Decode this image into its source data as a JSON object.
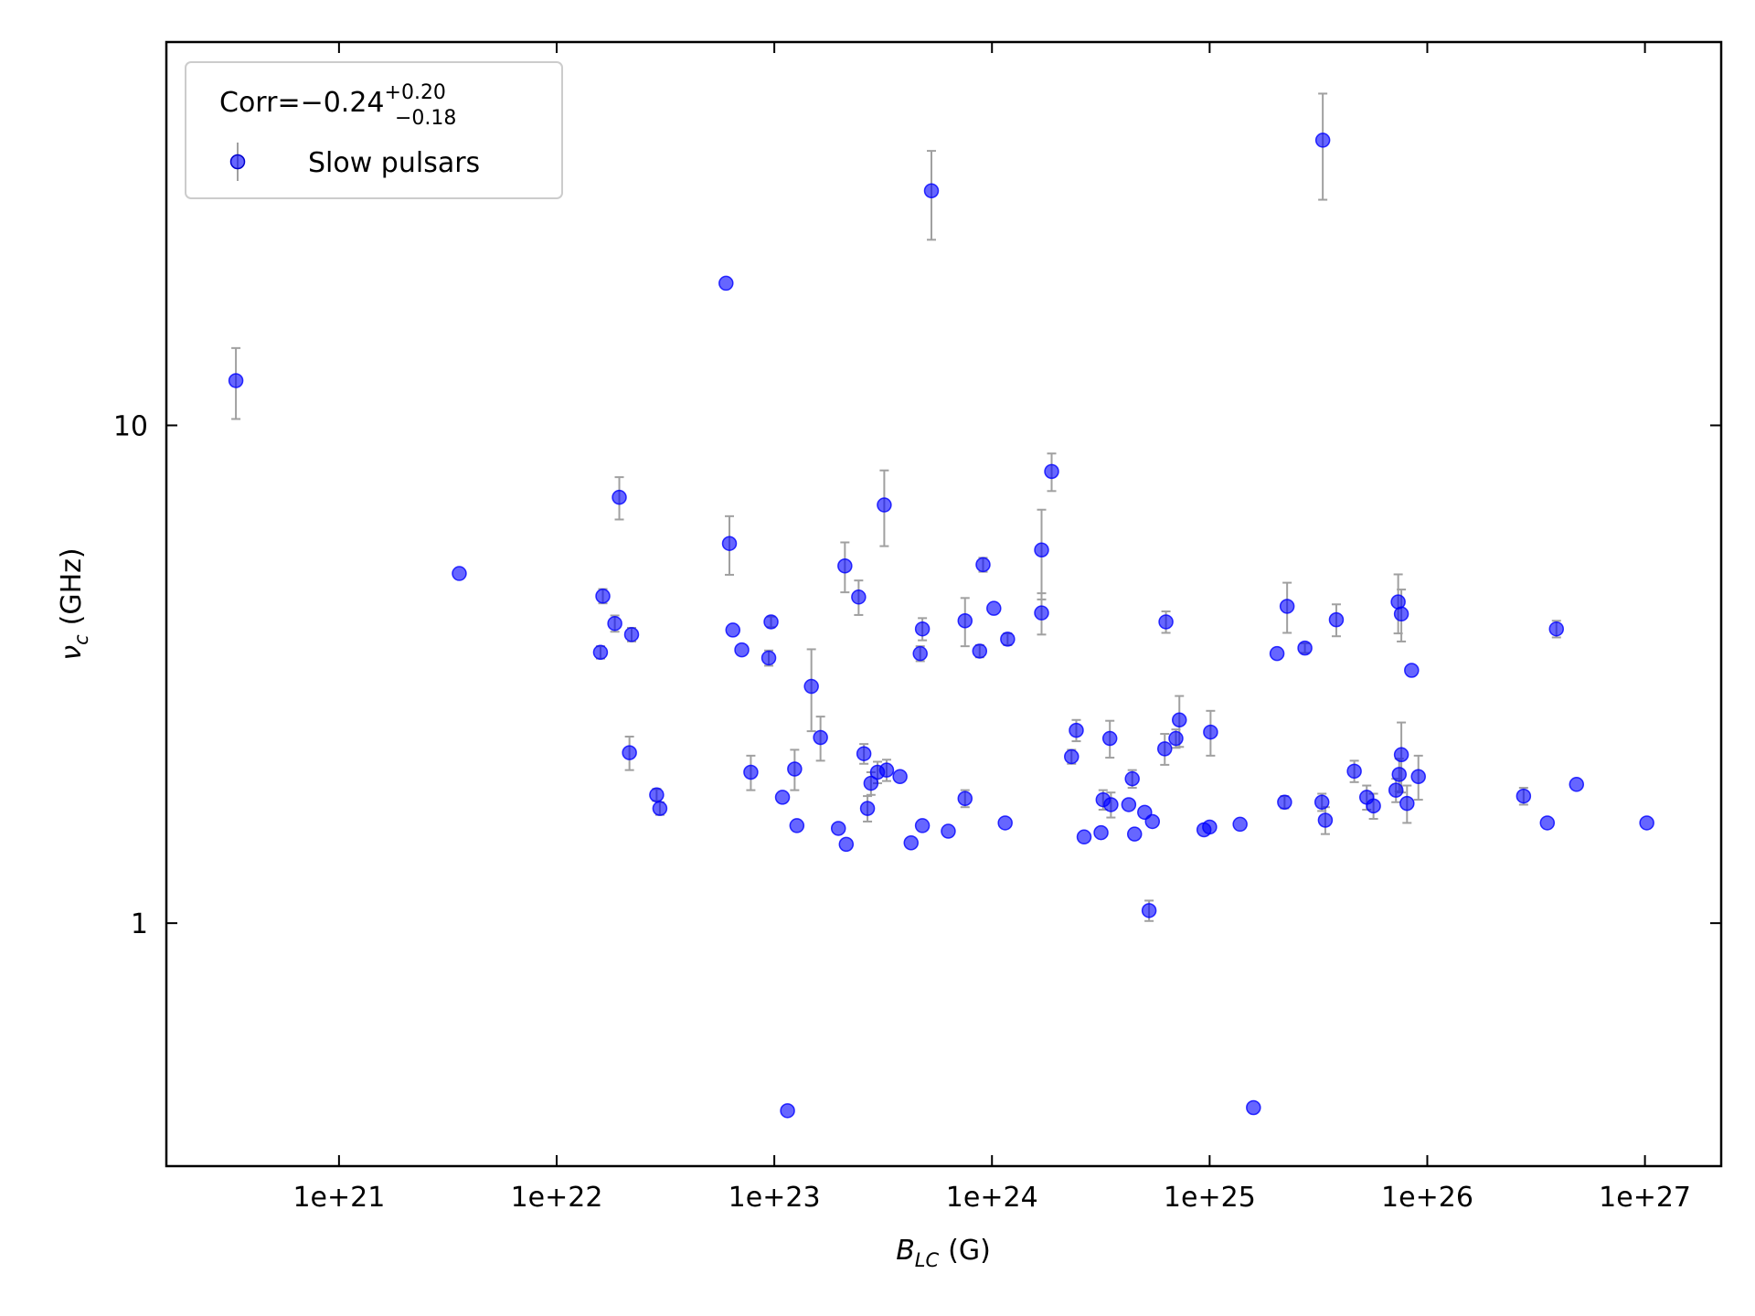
{
  "chart_data": {
    "type": "scatter",
    "xlabel": {
      "symbol": "B",
      "subscript": "LC",
      "unit": "(G)"
    },
    "ylabel": {
      "symbol": "ν",
      "subscript": "c",
      "unit": "(GHz)"
    },
    "legend_title": {
      "main": "Corr=−0.24",
      "sup": "+0.20",
      "sub": "−0.18"
    },
    "legend_loc": "upper left",
    "xscale": "log",
    "yscale": "log",
    "xlim": [
      1.61e+20,
      2.24e+27
    ],
    "ylim": [
      0.325,
      58.9
    ],
    "xticks": [
      {
        "value": 1e+21,
        "label": "1e+21"
      },
      {
        "value": 1e+22,
        "label": "1e+22"
      },
      {
        "value": 1e+23,
        "label": "1e+23"
      },
      {
        "value": 1e+24,
        "label": "1e+24"
      },
      {
        "value": 1e+25,
        "label": "1e+25"
      },
      {
        "value": 1e+26,
        "label": "1e+26"
      },
      {
        "value": 1e+27,
        "label": "1e+27"
      }
    ],
    "yticks": [
      1,
      10
    ],
    "error_color": "#a0a0a0",
    "series": [
      {
        "name": "Slow pulsars",
        "color": "#0000ff",
        "x": [
          3.36e+20,
          3.57e+21,
          1.59e+22,
          1.63e+22,
          1.85e+22,
          1.94e+22,
          2.21e+22,
          2.16e+22,
          2.88e+22,
          2.98e+22,
          6e+22,
          6.22e+22,
          6.45e+22,
          7.09e+22,
          7.8e+22,
          9.43e+22,
          9.66e+22,
          1.09e+23,
          1.15e+23,
          1.24e+23,
          1.27e+23,
          1.48e+23,
          1.63e+23,
          1.97e+23,
          2.11e+23,
          2.14e+23,
          2.44e+23,
          2.58e+23,
          2.68e+23,
          2.78e+23,
          2.98e+23,
          3.2e+23,
          3.28e+23,
          3.78e+23,
          4.25e+23,
          4.68e+23,
          4.79e+23,
          4.79e+23,
          5.27e+23,
          6.3e+23,
          7.52e+23,
          7.52e+23,
          8.78e+23,
          9.1e+23,
          1.02e+24,
          1.15e+24,
          1.18e+24,
          1.69e+24,
          1.69e+24,
          1.88e+24,
          2.32e+24,
          2.44e+24,
          2.65e+24,
          3.17e+24,
          3.24e+24,
          3.48e+24,
          3.52e+24,
          4.25e+24,
          4.41e+24,
          4.52e+24,
          5.03e+24,
          5.27e+24,
          5.46e+24,
          6.22e+24,
          6.3e+24,
          7e+24,
          7.26e+24,
          9.42e+24,
          1e+25,
          1.01e+25,
          1.38e+25,
          1.59e+25,
          2.04e+25,
          2.21e+25,
          2.27e+25,
          2.74e+25,
          3.28e+25,
          3.31e+25,
          3.4e+25,
          3.82e+25,
          4.62e+25,
          5.27e+25,
          5.66e+25,
          7.18e+25,
          7.35e+25,
          7.43e+25,
          7.6e+25,
          7.6e+25,
          8.07e+25,
          8.47e+25,
          9.1e+25,
          2.77e+26,
          3.56e+26,
          3.92e+26,
          4.85e+26,
          1.02e+27
        ],
        "values": [
          12.3,
          5.04,
          3.5,
          4.54,
          4.0,
          7.17,
          3.8,
          2.2,
          1.81,
          1.7,
          19.3,
          5.79,
          3.88,
          3.54,
          2.01,
          3.41,
          4.03,
          1.79,
          0.42,
          2.04,
          1.57,
          2.99,
          2.36,
          1.55,
          5.22,
          1.44,
          4.52,
          2.19,
          1.7,
          1.91,
          2.01,
          6.92,
          2.03,
          1.97,
          1.45,
          3.48,
          3.9,
          1.57,
          29.6,
          1.53,
          4.05,
          1.78,
          3.52,
          5.25,
          4.29,
          1.59,
          3.72,
          5.62,
          4.2,
          8.08,
          2.16,
          2.44,
          1.49,
          1.52,
          1.77,
          2.35,
          1.73,
          1.73,
          1.95,
          1.51,
          1.67,
          1.06,
          1.6,
          2.24,
          4.03,
          2.35,
          2.56,
          1.54,
          1.56,
          2.42,
          1.58,
          0.426,
          3.48,
          1.75,
          4.33,
          3.57,
          1.75,
          37.4,
          1.61,
          4.07,
          2.02,
          1.79,
          1.72,
          1.85,
          4.42,
          1.99,
          4.18,
          2.18,
          1.74,
          3.22,
          1.97,
          1.8,
          1.59,
          3.9,
          1.9,
          1.59
        ],
        "errors": [
          2.0,
          null,
          0.1,
          0.15,
          0.15,
          0.7,
          0.12,
          0.17,
          0.05,
          0.05,
          null,
          0.78,
          null,
          null,
          0.16,
          0.12,
          0.1,
          null,
          null,
          0.19,
          null,
          0.56,
          0.24,
          null,
          0.6,
          null,
          0.36,
          0.1,
          0.1,
          0.1,
          0.1,
          1.2,
          0.1,
          null,
          null,
          0.12,
          0.2,
          null,
          6,
          null,
          0.45,
          0.07,
          0.1,
          0.17,
          null,
          null,
          0.1,
          1.15,
          0.4,
          0.7,
          0.07,
          0.12,
          null,
          null,
          0.08,
          0.2,
          0.1,
          null,
          0.08,
          null,
          null,
          0.05,
          null,
          0.16,
          0.2,
          0.1,
          0.3,
          null,
          null,
          0.25,
          null,
          null,
          null,
          0.05,
          0.5,
          0.08,
          0.07,
          9,
          0.1,
          0.3,
          0.1,
          0.1,
          0.1,
          0.1,
          0.6,
          0.15,
          0.5,
          0.35,
          0.15,
          null,
          0.2,
          0.07,
          null,
          0.15,
          null,
          null
        ]
      }
    ]
  }
}
